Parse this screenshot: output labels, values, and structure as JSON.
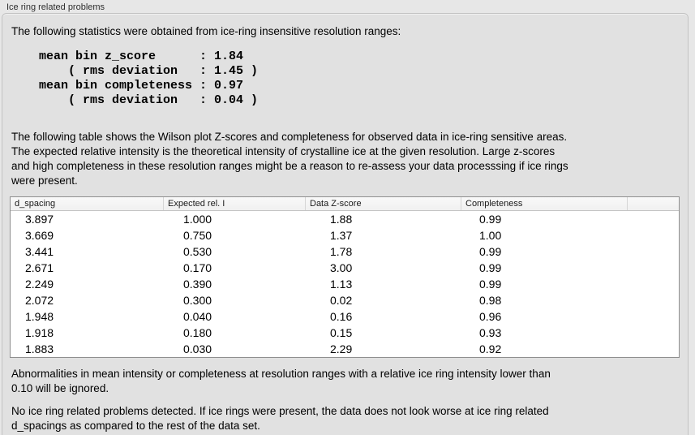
{
  "panel": {
    "title": "Ice ring related problems"
  },
  "intro": {
    "text": "The following statistics were obtained from ice-ring insensitive resolution ranges:"
  },
  "stats": {
    "lines": [
      "mean bin z_score      : 1.84",
      "    ( rms deviation   : 1.45 )",
      "mean bin completeness : 0.97",
      "    ( rms deviation   : 0.04 )"
    ]
  },
  "description": {
    "lines": [
      "The following table shows the Wilson plot Z-scores and completeness for observed data in ice-ring sensitive areas.",
      "The expected relative intensity is the theoretical intensity of crystalline ice at the given resolution. Large z-scores",
      "and high completeness in these resolution ranges might be a reason to re-assess your data processsing if ice rings",
      "were present."
    ]
  },
  "table": {
    "columns": [
      "d_spacing",
      "Expected rel. I",
      "Data Z-score",
      "Completeness"
    ],
    "rows": [
      [
        "3.897",
        "1.000",
        "1.88",
        "0.99"
      ],
      [
        "3.669",
        "0.750",
        "1.37",
        "1.00"
      ],
      [
        "3.441",
        "0.530",
        "1.78",
        "0.99"
      ],
      [
        "2.671",
        "0.170",
        "3.00",
        "0.99"
      ],
      [
        "2.249",
        "0.390",
        "1.13",
        "0.99"
      ],
      [
        "2.072",
        "0.300",
        "0.02",
        "0.98"
      ],
      [
        "1.948",
        "0.040",
        "0.16",
        "0.96"
      ],
      [
        "1.918",
        "0.180",
        "0.15",
        "0.93"
      ],
      [
        "1.883",
        "0.030",
        "2.29",
        "0.92"
      ]
    ]
  },
  "note": {
    "lines": [
      "Abnormalities in mean intensity or completeness at resolution ranges with a relative ice ring intensity lower than",
      "0.10 will be ignored."
    ]
  },
  "conclusion": {
    "lines": [
      "No ice ring related problems detected. If ice rings were present, the data does not look worse at ice ring related",
      "d_spacings as compared to the rest of the data set."
    ]
  }
}
